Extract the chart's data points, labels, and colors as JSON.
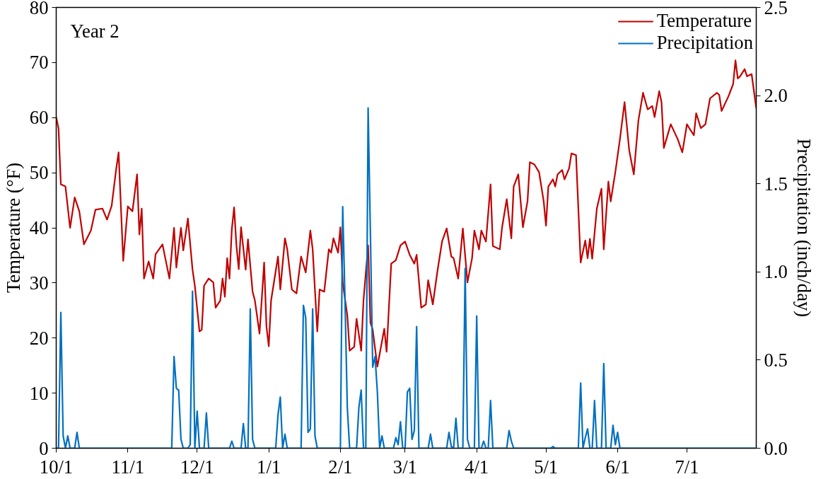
{
  "chart_data": {
    "type": "line",
    "ylabel": "Temperature (°F)",
    "y2label": "Precipitation (inch/day)",
    "annotations": [
      "Year 2"
    ],
    "categories": [
      "10/1",
      null,
      null,
      null,
      null,
      null,
      null,
      null,
      null,
      null,
      null,
      null,
      null,
      null,
      null,
      null,
      null,
      null,
      null,
      null,
      null,
      null,
      null,
      null,
      null,
      null,
      null,
      null,
      null,
      null,
      null,
      "11/1",
      null,
      null,
      null,
      null,
      null,
      null,
      null,
      null,
      null,
      null,
      null,
      null,
      null,
      null,
      null,
      null,
      null,
      null,
      null,
      null,
      null,
      null,
      null,
      null,
      null,
      null,
      null,
      null,
      null,
      "12/1",
      null,
      null,
      null,
      null,
      null,
      null,
      null,
      null,
      null,
      null,
      null,
      null,
      null,
      null,
      null,
      null,
      null,
      null,
      null,
      null,
      null,
      null,
      null,
      null,
      null,
      null,
      null,
      null,
      null,
      null,
      "1/1",
      null,
      null,
      null,
      null,
      null,
      null,
      null,
      null,
      null,
      null,
      null,
      null,
      null,
      null,
      null,
      null,
      null,
      null,
      null,
      null,
      null,
      null,
      null,
      null,
      null,
      null,
      null,
      null,
      null,
      null,
      "2/1",
      null,
      null,
      null,
      null,
      null,
      null,
      null,
      null,
      null,
      null,
      null,
      null,
      null,
      null,
      null,
      null,
      null,
      null,
      null,
      null,
      null,
      null,
      null,
      null,
      null,
      null,
      null,
      "3/1",
      null,
      null,
      null,
      null,
      null,
      null,
      null,
      null,
      null,
      null,
      null,
      null,
      null,
      null,
      null,
      null,
      null,
      null,
      null,
      null,
      null,
      null,
      null,
      null,
      null,
      null,
      null,
      null,
      null,
      null,
      "4/1",
      null,
      null,
      null,
      null,
      null,
      null,
      null,
      null,
      null,
      null,
      null,
      null,
      null,
      null,
      null,
      null,
      null,
      null,
      null,
      null,
      null,
      null,
      null,
      null,
      null,
      null,
      null,
      null,
      null,
      "5/1",
      null,
      null,
      null,
      null,
      null,
      null,
      null,
      null,
      null,
      null,
      null,
      null,
      null,
      null,
      null,
      null,
      null,
      null,
      null,
      null,
      null,
      null,
      null,
      null,
      null,
      null,
      null,
      null,
      null,
      null,
      "6/1",
      null,
      null,
      null,
      null,
      null,
      null,
      null,
      null,
      null,
      null,
      null,
      null,
      null,
      null,
      null,
      null,
      null,
      null,
      null,
      null,
      null,
      null,
      null,
      null,
      null,
      null,
      null,
      null,
      null,
      "7/1",
      null,
      null,
      null,
      null,
      null,
      null,
      null,
      null,
      null,
      null,
      null,
      null,
      null,
      null,
      null,
      null,
      null,
      null,
      null,
      null,
      null,
      null,
      null,
      null,
      null,
      null,
      null,
      null,
      null,
      null
    ],
    "ylim": [
      0,
      80
    ],
    "yticks": [
      0,
      10,
      20,
      30,
      40,
      50,
      60,
      70,
      80
    ],
    "y2lim": [
      0,
      2.5
    ],
    "y2ticks": [
      {
        "value": 0,
        "label": "0.0"
      },
      {
        "value": 0.5,
        "label": "0.5"
      },
      {
        "value": 1,
        "label": "1.0"
      },
      {
        "value": 1.5,
        "label": "1.5"
      },
      {
        "value": 2,
        "label": "2.0"
      },
      {
        "value": 2.5,
        "label": "2.5"
      }
    ],
    "legend": "top right",
    "series": [
      {
        "name": "Temperature",
        "color": "#c00000",
        "values": [
          60.1,
          58,
          47.9,
          null,
          47.5,
          null,
          40,
          null,
          45.5,
          null,
          43,
          null,
          37,
          null,
          null,
          39.5,
          null,
          43.3,
          null,
          null,
          43.5,
          null,
          41.5,
          null,
          44,
          null,
          50.8,
          53.7,
          null,
          34,
          null,
          43.9,
          null,
          43,
          null,
          49.7,
          38.8,
          43.5,
          30.8,
          null,
          33.9,
          null,
          30.8,
          35.2,
          null,
          null,
          37,
          null,
          null,
          30.8,
          null,
          40,
          32.8,
          null,
          40,
          35.9,
          null,
          41.7,
          null,
          32.4,
          29.5,
          null,
          21.2,
          21.5,
          29.5,
          null,
          30.8,
          null,
          30.1,
          25.5,
          null,
          26.8,
          30.8,
          27.5,
          34.5,
          30.8,
          39.7,
          43.7,
          36.8,
          32.5,
          40.1,
          null,
          32.4,
          37.9,
          null,
          28.4,
          26.8,
          null,
          20.8,
          null,
          33.7,
          22.1,
          18.5,
          26.8,
          null,
          null,
          34.8,
          28.8,
          null,
          38.1,
          36.1,
          null,
          28.8,
          null,
          28.1,
          null,
          34.8,
          null,
          31.9,
          null,
          39.5,
          36.1,
          null,
          21.2,
          28.8,
          null,
          28.4,
          null,
          36.1,
          35.5,
          38.1,
          null,
          35.5,
          40.1,
          30.1,
          null,
          24.1,
          17.7,
          null,
          18.4,
          23.5,
          null,
          17.7,
          26.8,
          null,
          36.8,
          22.8,
          21.5,
          null,
          14.8,
          null,
          null,
          21.7,
          17.5,
          null,
          33.5,
          null,
          34.1,
          null,
          36.8,
          null,
          37.5,
          null,
          35.1,
          null,
          33.5,
          35.1,
          null,
          25.5,
          null,
          26.1,
          30.5,
          null,
          26.1,
          null,
          32.1,
          null,
          37.5,
          null,
          39.9,
          null,
          34.8,
          34.5,
          null,
          30.8,
          null,
          39.9,
          null,
          30.1,
          null,
          34.5,
          39.5,
          null,
          36.1,
          39.5,
          null,
          37.5,
          null,
          47.9,
          36.7,
          null,
          null,
          36.1,
          40.1,
          null,
          45.2,
          null,
          38.1,
          47.5,
          null,
          49.7,
          null,
          40.1,
          null,
          44.8,
          51.9,
          null,
          51.5,
          null,
          50.1,
          null,
          44.8,
          40.4,
          47.5,
          null,
          48.8,
          47.5,
          49.7,
          null,
          50.5,
          48.8,
          null,
          50.8,
          53.5,
          null,
          53.2,
          null,
          33.7,
          null,
          37.7,
          34.5,
          38,
          34.4,
          null,
          43.5,
          null,
          47.1,
          36.1,
          null,
          48.4,
          44.8,
          null,
          50.1,
          null,
          56.1,
          null,
          62.8,
          null,
          54.1,
          null,
          49.7,
          null,
          59.5,
          null,
          64.5,
          null,
          61.5,
          null,
          62.1,
          60.1,
          null,
          64.8,
          62.8,
          54.5,
          null,
          null,
          58.8,
          null,
          null,
          56.1,
          null,
          53.7,
          null,
          58.8,
          58.1,
          null,
          56.8,
          60.8,
          null,
          58.1,
          null,
          58.8,
          null,
          63.5,
          null,
          null,
          64.5,
          64.1,
          61.2,
          null,
          null,
          63.9,
          null,
          66.1,
          70.4,
          67.1,
          67.5,
          null,
          68.8,
          67.5,
          null,
          67.9,
          null,
          61.7
        ]
      },
      {
        "name": "Precipitation",
        "color": "#0070c0",
        "axis": "y2",
        "values": [
          0,
          0,
          0.77,
          0.07,
          0,
          0.07,
          0,
          0,
          0,
          0.09,
          0,
          0,
          0,
          0,
          0,
          0,
          0,
          0,
          0,
          0,
          0,
          0,
          0,
          0,
          0,
          0,
          0,
          0,
          0,
          0,
          0,
          0,
          0,
          0,
          0,
          0,
          0,
          0,
          0,
          0,
          0,
          0,
          0,
          0,
          0,
          0,
          0,
          0,
          0,
          0,
          0,
          0.52,
          0.34,
          0.33,
          0.05,
          0,
          0,
          0,
          0.02,
          0.89,
          0,
          0.21,
          0,
          0,
          0,
          0.2,
          0,
          0,
          0,
          0,
          0,
          0,
          0,
          0,
          0,
          0,
          0.04,
          0,
          0,
          0,
          0,
          0.14,
          0,
          0,
          0.79,
          0.05,
          0,
          0,
          0,
          0,
          0,
          0,
          0,
          0,
          0,
          0,
          0.19,
          0.29,
          0,
          0.08,
          0,
          0,
          0,
          0,
          0,
          0,
          0,
          0.81,
          0.74,
          0.09,
          0.11,
          0.79,
          0.07,
          0,
          0,
          0,
          0,
          0,
          0,
          0,
          0,
          0,
          0,
          0,
          1.37,
          0.84,
          0.23,
          0,
          0,
          0,
          0,
          0.23,
          0.33,
          0,
          0,
          1.93,
          1.21,
          0.46,
          0.52,
          0.32,
          0,
          0.07,
          0,
          0,
          0,
          0,
          0,
          0.06,
          0.02,
          0.15,
          0,
          0,
          0.32,
          0.34,
          0.05,
          0.1,
          0.69,
          0,
          0,
          0,
          0,
          0,
          0.08,
          0,
          0,
          0,
          0,
          0,
          0,
          0,
          0.09,
          0.01,
          0,
          0.17,
          0,
          0,
          0,
          1.02,
          0.05,
          0,
          0,
          0,
          0.75,
          0,
          0,
          0.04,
          0,
          0,
          0.27,
          0,
          0,
          0,
          0,
          0,
          0,
          0,
          0.1,
          0.04,
          0,
          0,
          0,
          0,
          0,
          0,
          0,
          0,
          0,
          0,
          0,
          0,
          0,
          0,
          0,
          0,
          0,
          0.01,
          0,
          0,
          0,
          0,
          0,
          0,
          0,
          0,
          0,
          0,
          0,
          0.37,
          0,
          0.06,
          0.11,
          0,
          0,
          0.27,
          0,
          0,
          0,
          0.48,
          0,
          0,
          0,
          0.13,
          0.02,
          0.09,
          0,
          0,
          0,
          0,
          0,
          0,
          0,
          0,
          0,
          0,
          0,
          0,
          0,
          0,
          0,
          0,
          0,
          0,
          0,
          0,
          0,
          0,
          0,
          0,
          0,
          0,
          0,
          0,
          0,
          0,
          0,
          0,
          0,
          0,
          0,
          0,
          0,
          0,
          0,
          0,
          0,
          0,
          0,
          0,
          0,
          0,
          0,
          0,
          0,
          0,
          0,
          0,
          0,
          0,
          0,
          0,
          0,
          0,
          0,
          0
        ]
      }
    ]
  }
}
